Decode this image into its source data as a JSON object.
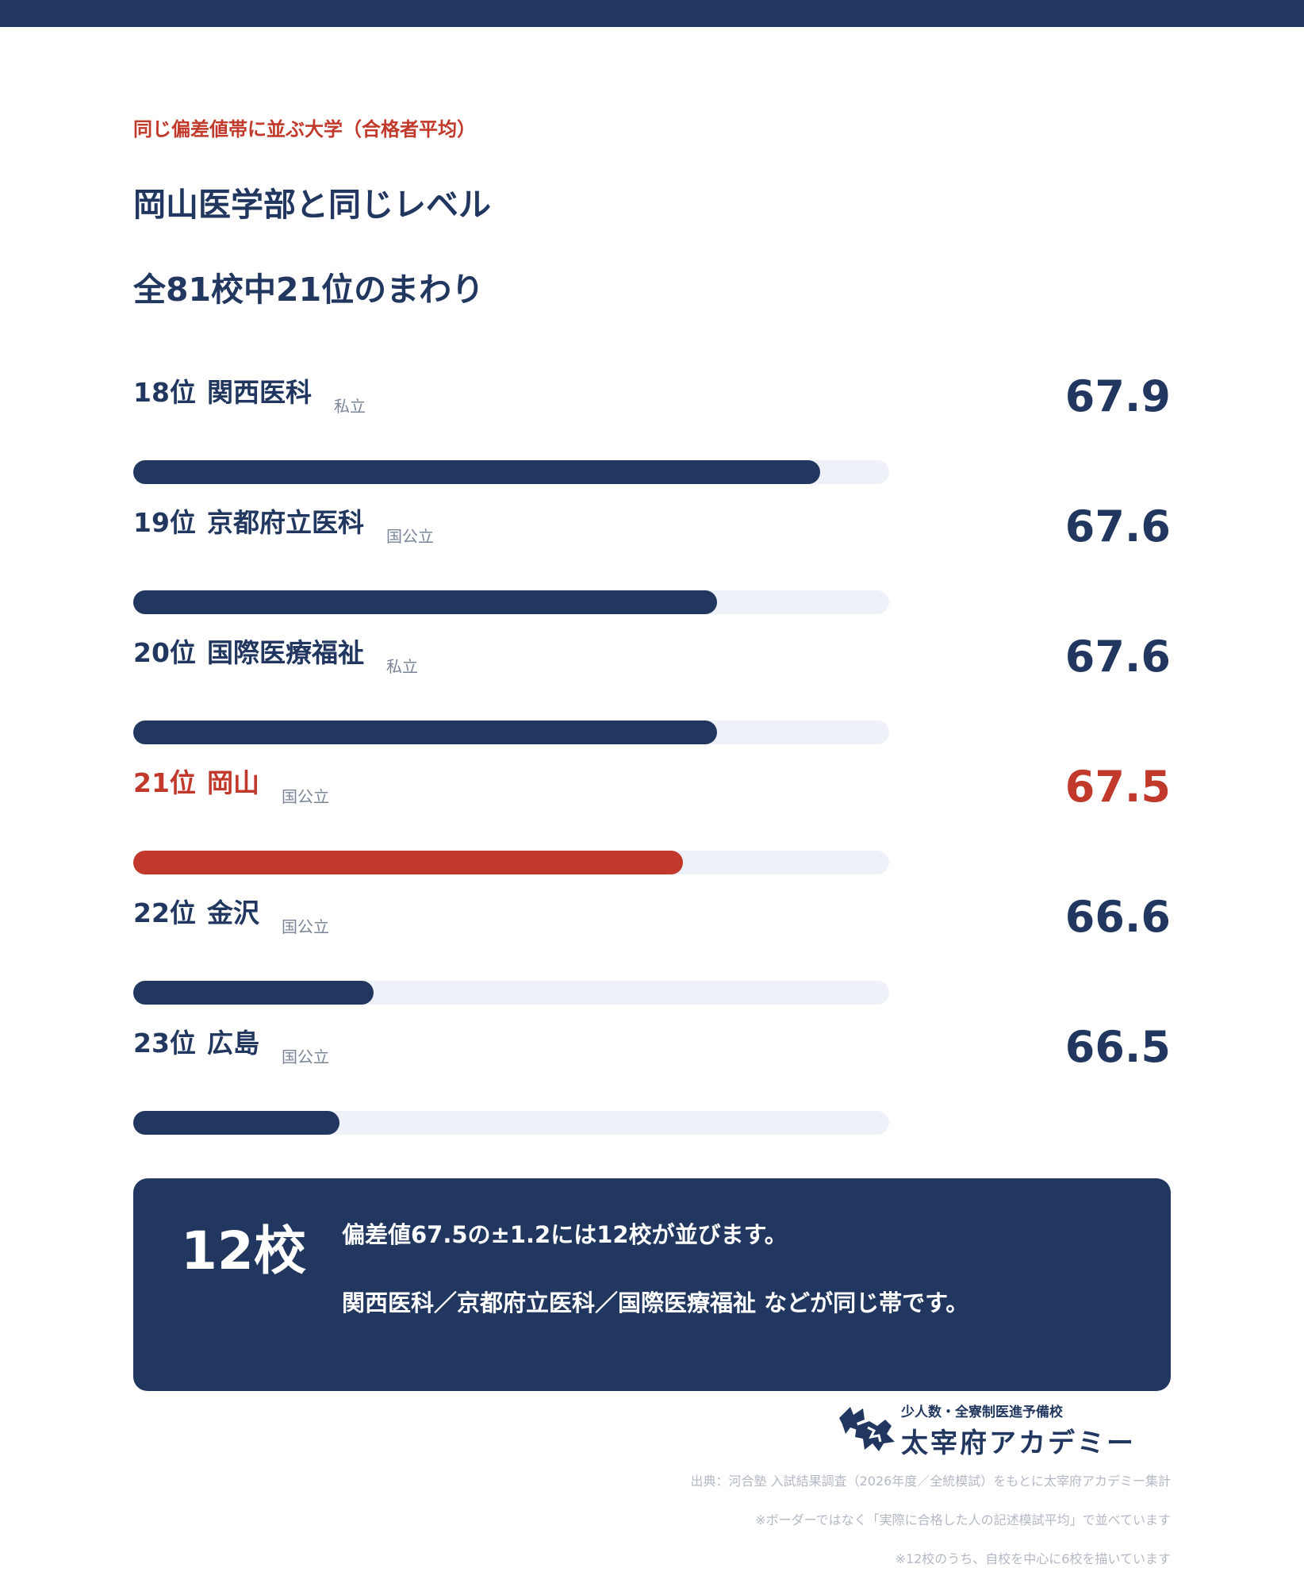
{
  "header": {
    "eyebrow": "同じ偏差値帯に並ぶ大学（合格者平均）",
    "title_line1": "岡山医学部と同じレベル",
    "title_line2": "全81校中21位のまわり"
  },
  "chart_data": {
    "type": "bar",
    "orientation": "horizontal",
    "xlim": [
      65.9,
      68.1
    ],
    "rows": [
      {
        "rank": "18位",
        "name": "関西医科",
        "type": "私立",
        "value": 67.9,
        "value_label": "67.9",
        "highlight": false
      },
      {
        "rank": "19位",
        "name": "京都府立医科",
        "type": "国公立",
        "value": 67.6,
        "value_label": "67.6",
        "highlight": false
      },
      {
        "rank": "20位",
        "name": "国際医療福祉",
        "type": "私立",
        "value": 67.6,
        "value_label": "67.6",
        "highlight": false
      },
      {
        "rank": "21位",
        "name": "岡山",
        "type": "国公立",
        "value": 67.5,
        "value_label": "67.5",
        "highlight": true
      },
      {
        "rank": "22位",
        "name": "金沢",
        "type": "国公立",
        "value": 66.6,
        "value_label": "66.6",
        "highlight": false
      },
      {
        "rank": "23位",
        "name": "広島",
        "type": "国公立",
        "value": 66.5,
        "value_label": "66.5",
        "highlight": false
      }
    ],
    "colors": {
      "bar": "#21375f",
      "highlight": "#c0392b",
      "track": "#eef1f7"
    }
  },
  "summary": {
    "count": "12校",
    "line1": "偏差値67.5の±1.2には12校が並びます。",
    "line2": "関西医科／京都府立医科／国際医療福祉 などが同じ帯です。"
  },
  "logo": {
    "tagline": "少人数・全寮制医進予備校",
    "brand": "太宰府アカデミー"
  },
  "footnotes": {
    "source": "出典：河合塾 入試結果調査（2026年度／全統模試）をもとに太宰府アカデミー集計",
    "note1": "※ボーダーではなく「実際に合格した人の記述模試平均」で並べています",
    "note2": "※12校のうち、自校を中心に6校を描いています"
  }
}
